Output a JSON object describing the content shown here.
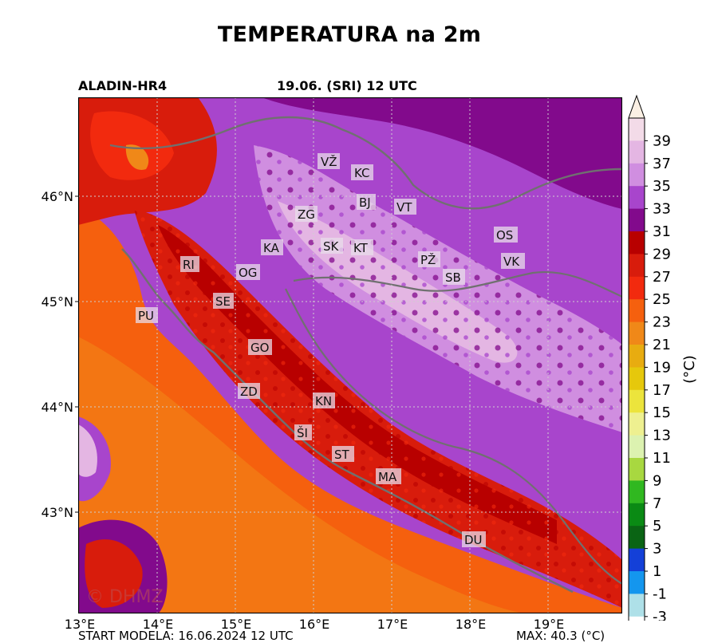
{
  "title": "TEMPERATURA na 2m",
  "model": "ALADIN-HR4",
  "valid_time": "19.06. (SRI) 12 UTC",
  "watermark": "© DHMZ",
  "footer_left": "START MODELA: 16.06.2024 12 UTC",
  "footer_right": "MAX: 40.3 (°C)",
  "lon_ticks": [
    "13°E",
    "14°E",
    "15°E",
    "16°E",
    "17°E",
    "18°E",
    "19°E"
  ],
  "lat_ticks": [
    "46°N",
    "45°N",
    "44°N",
    "43°N"
  ],
  "colorbar": {
    "label": "(°C)",
    "ticks": [
      "39",
      "37",
      "35",
      "33",
      "31",
      "29",
      "27",
      "25",
      "23",
      "21",
      "19",
      "17",
      "15",
      "13",
      "11",
      "9",
      "7",
      "5",
      "3",
      "1",
      "-1",
      "-3"
    ],
    "colors": [
      "#f3dbe8",
      "#e4b6e3",
      "#d08ee0",
      "#a845cc",
      "#820a8c",
      "#b80000",
      "#d81c0c",
      "#f22a0e",
      "#f5600e",
      "#f08818",
      "#e8ac10",
      "#e6c80c",
      "#ece43c",
      "#eef090",
      "#dcf2b0",
      "#a8d840",
      "#30b820",
      "#0a8a14",
      "#0a6414",
      "#1440d8",
      "#1496ee",
      "#aee0e8",
      "#ffffff"
    ]
  },
  "cities": [
    {
      "code": "VŽ"
    },
    {
      "code": "KC"
    },
    {
      "code": "ZG"
    },
    {
      "code": "BJ"
    },
    {
      "code": "VT"
    },
    {
      "code": "OS"
    },
    {
      "code": "KA"
    },
    {
      "code": "SK"
    },
    {
      "code": "KT"
    },
    {
      "code": "PŽ"
    },
    {
      "code": "VK"
    },
    {
      "code": "RI"
    },
    {
      "code": "OG"
    },
    {
      "code": "SB"
    },
    {
      "code": "SE"
    },
    {
      "code": "PU"
    },
    {
      "code": "GO"
    },
    {
      "code": "ZD"
    },
    {
      "code": "KN"
    },
    {
      "code": "ŠI"
    },
    {
      "code": "ST"
    },
    {
      "code": "MA"
    },
    {
      "code": "DU"
    }
  ]
}
